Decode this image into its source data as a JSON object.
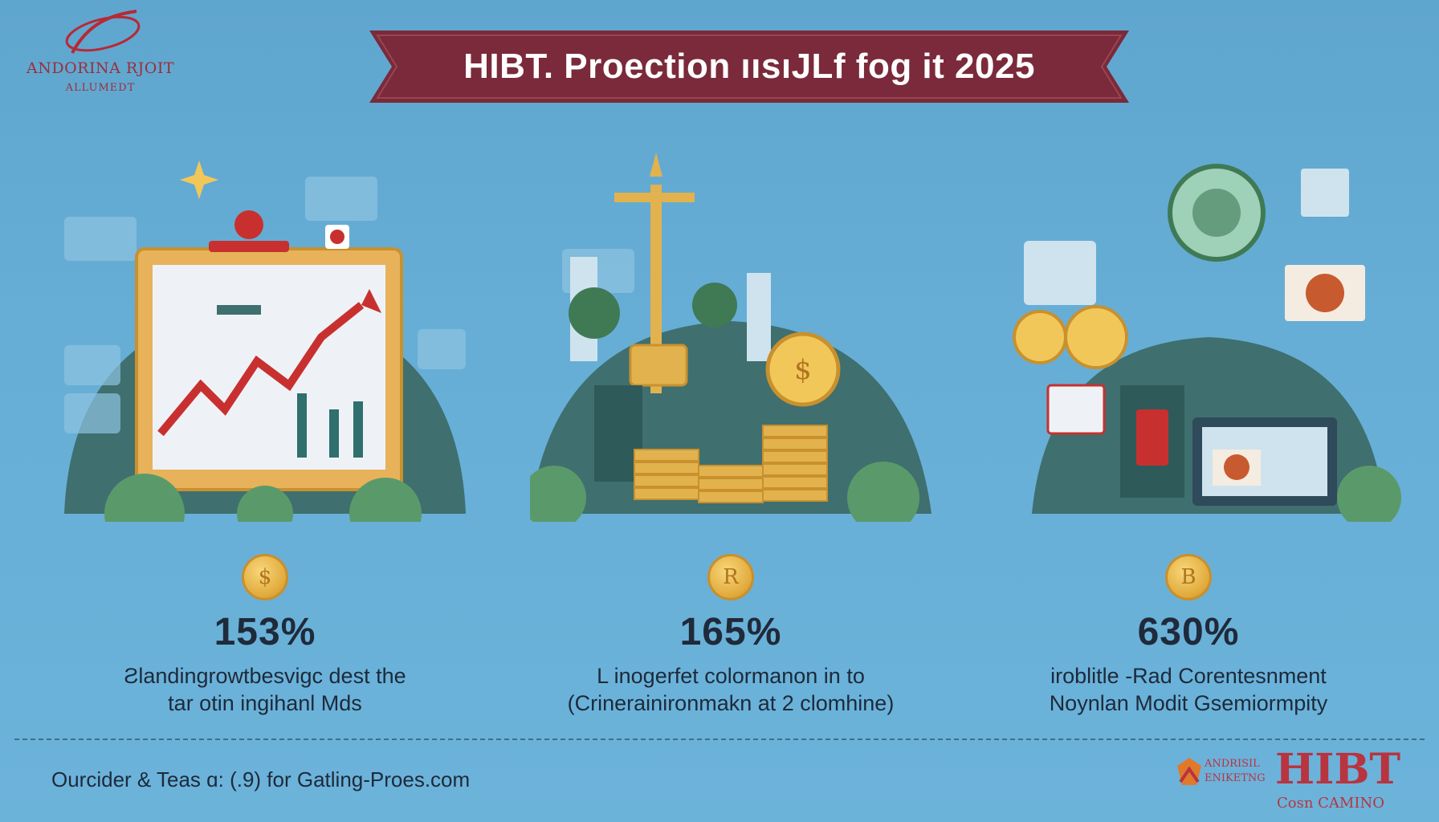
{
  "header": {
    "logo_line1": "ANDORINA RJOIT",
    "logo_line2": "ALLUMEDT",
    "title": "HIBT. Proection ıısıJLf fog it 2025"
  },
  "panels": [
    {
      "illustration": "growth-chart-illustration",
      "coin_symbol": "$",
      "percent": "153%",
      "desc_line1": "Ƨlandingrowtbesvigc dest the",
      "desc_line2": "tar otin ingihanl Mds"
    },
    {
      "illustration": "city-coins-illustration",
      "coin_symbol": "R",
      "percent": "165%",
      "desc_line1": "L inogerfet colormanon in to",
      "desc_line2": "(Crinerainironmakn at 2 clomhine)"
    },
    {
      "illustration": "digital-casino-illustration",
      "coin_symbol": "B",
      "percent": "630%",
      "desc_line1": "iroblitle -Rad Corentesnment",
      "desc_line2": "Noynlan Modit Gsemiormpity"
    }
  ],
  "footer": {
    "source": "Ourcider & Teas ɑ: (.9) for Gatling-Proes.com",
    "logo_small_line1": "ANDRISIL",
    "logo_small_line2": "ENIKETNG",
    "logo_big": "HIBT",
    "logo_sub": "Cosn CAMINO"
  },
  "colors": {
    "background": "#62a9d2",
    "banner": "#7a2a3a",
    "accent_red": "#b8343f",
    "gold": "#e0a93a",
    "text_dark": "#1f2a3a"
  }
}
